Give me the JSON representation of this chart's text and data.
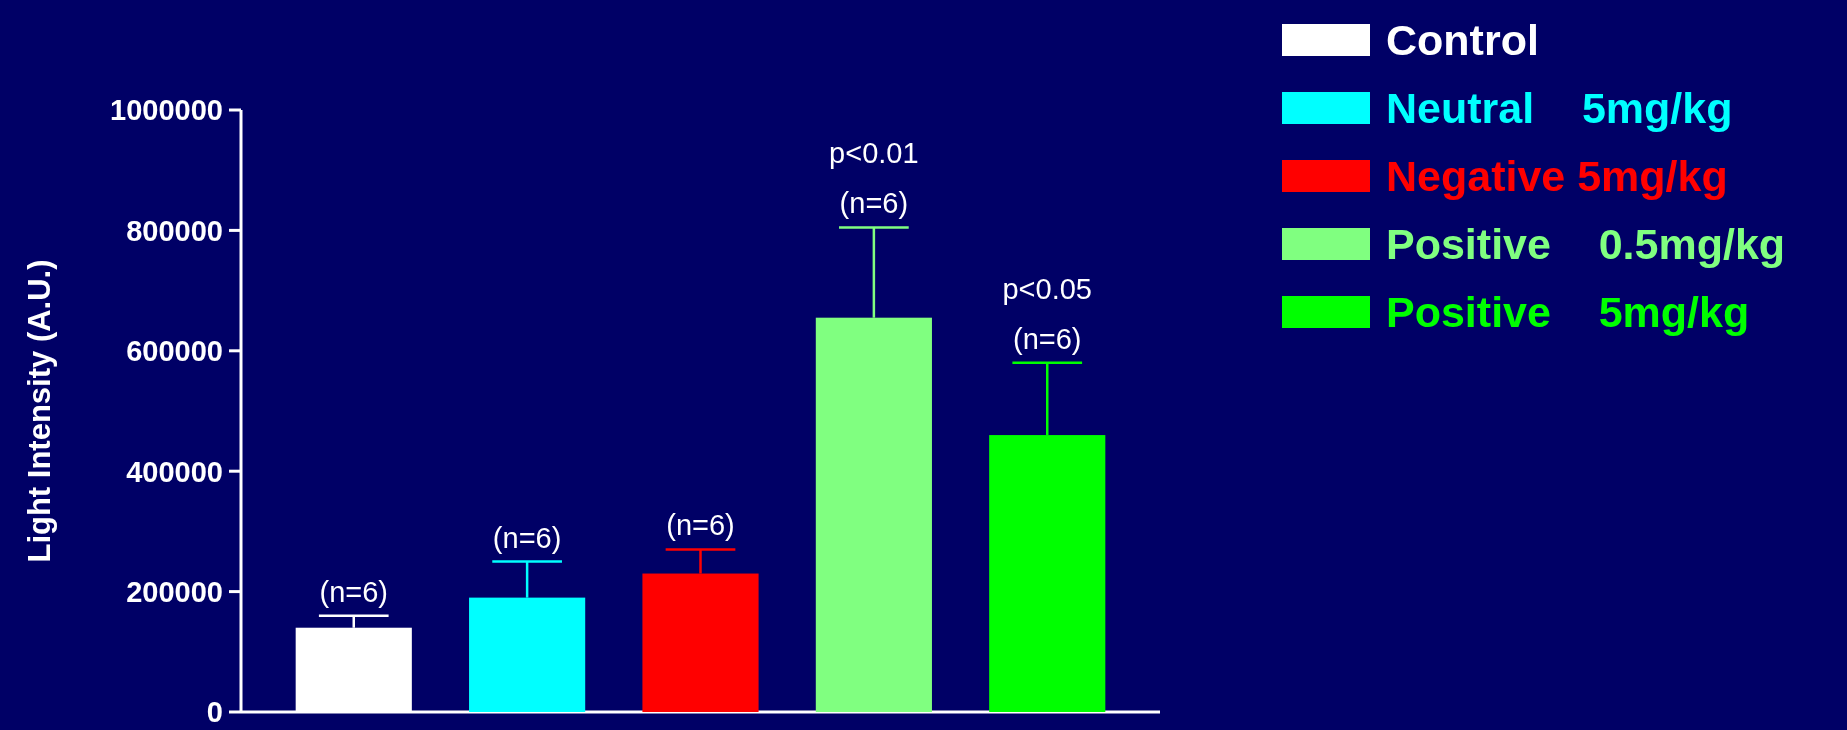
{
  "chart_data": {
    "type": "bar",
    "ylabel": "Light Intensity (A.U.)",
    "categories": [
      null,
      null,
      null,
      null,
      null
    ],
    "series": [
      {
        "name": "Control",
        "color": "#ffffff",
        "values": [
          140000,
          null,
          null,
          null,
          null
        ],
        "errors": [
          [
            140000,
            160000
          ],
          null,
          null,
          null,
          null
        ]
      },
      {
        "name": "Neutral    5mg/kg",
        "color": "#00ffff",
        "values": [
          null,
          190000,
          null,
          null,
          null
        ],
        "errors": [
          null,
          [
            190000,
            250000
          ],
          null,
          null,
          null
        ]
      },
      {
        "name": "Negative 5mg/kg",
        "color": "#ff0000",
        "values": [
          null,
          null,
          230000,
          null,
          null
        ],
        "errors": [
          null,
          null,
          [
            230000,
            270000
          ],
          null,
          null
        ]
      },
      {
        "name": "Positive    0.5mg/kg",
        "color": "#80ff80",
        "values": [
          null,
          null,
          null,
          655000,
          null
        ],
        "errors": [
          null,
          null,
          null,
          [
            655000,
            805000
          ],
          null
        ]
      },
      {
        "name": "Positive    5mg/kg",
        "color": "#00ff00",
        "values": [
          null,
          null,
          null,
          null,
          460000
        ],
        "errors": [
          null,
          null,
          null,
          null,
          [
            460000,
            580000
          ]
        ]
      }
    ],
    "ylim": [
      0,
      1000000
    ],
    "yticks": [
      0,
      200000,
      400000,
      600000,
      800000,
      1000000
    ],
    "legend": "top right",
    "annotations": [
      {
        "text": "(n=6)",
        "y": 160000
      },
      {
        "text": "(n=6)",
        "y": 250000
      },
      {
        "text": "(n=6)",
        "y": 270000
      },
      {
        "text": "p<0.01\n(n=6)",
        "y": 805000
      },
      {
        "text": "p<0.05\n(n=6)",
        "y": 580000
      }
    ]
  }
}
